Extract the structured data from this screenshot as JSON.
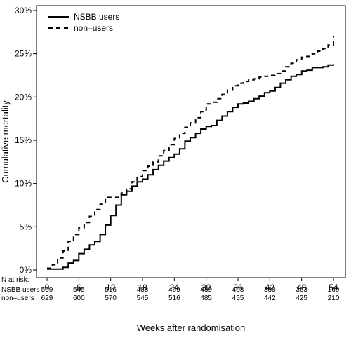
{
  "chart_data": {
    "type": "line",
    "step": true,
    "xlabel": "Weeks after randomisation",
    "ylabel": "Cumulative mortality",
    "xlim": [
      0,
      54
    ],
    "ylim": [
      0,
      30
    ],
    "x_ticks": [
      0,
      6,
      12,
      18,
      24,
      30,
      36,
      42,
      48,
      54
    ],
    "y_ticks": [
      "0%",
      "5%",
      "10%",
      "15%",
      "20%",
      "25%",
      "30%"
    ],
    "grid": false,
    "legend": "top-left",
    "series": [
      {
        "name": "NSBB users",
        "style": "solid",
        "color": "#000000",
        "x": [
          0,
          3,
          4,
          5,
          6,
          7,
          8,
          9,
          10,
          11,
          12,
          13,
          14,
          15,
          16,
          17,
          18,
          19,
          20,
          21,
          22,
          23,
          24,
          25,
          26,
          27,
          28,
          29,
          30,
          31,
          32,
          33,
          34,
          35,
          36,
          37,
          38,
          39,
          40,
          41,
          42,
          43,
          44,
          45,
          46,
          47,
          48,
          49,
          50,
          52,
          53,
          54
        ],
        "y": [
          0.1,
          0.3,
          0.8,
          1.1,
          1.9,
          2.4,
          2.9,
          3.3,
          4.1,
          5.2,
          6.3,
          7.5,
          8.7,
          9.1,
          9.7,
          10.2,
          10.5,
          11.0,
          11.6,
          12.1,
          12.6,
          13.0,
          13.4,
          14.0,
          14.9,
          15.3,
          15.8,
          16.3,
          16.6,
          16.7,
          17.3,
          17.8,
          18.3,
          18.8,
          19.2,
          19.3,
          19.5,
          19.8,
          20.1,
          20.5,
          20.7,
          21.1,
          21.6,
          22.0,
          22.4,
          22.6,
          23.0,
          23.1,
          23.4,
          23.5,
          23.7,
          23.8
        ]
      },
      {
        "name": "non–users",
        "style": "dashed",
        "color": "#000000",
        "x": [
          0,
          1,
          2,
          3,
          4,
          5,
          6,
          7,
          8,
          9,
          10,
          11,
          12,
          13,
          14,
          15,
          16,
          17,
          18,
          19,
          20,
          21,
          22,
          23,
          24,
          25,
          26,
          27,
          28,
          29,
          30,
          31,
          32,
          33,
          34,
          35,
          36,
          37,
          38,
          39,
          40,
          41,
          42,
          43,
          44,
          45,
          46,
          47,
          48,
          49,
          50,
          51,
          52,
          53,
          54
        ],
        "y": [
          0.2,
          0.6,
          1.4,
          2.2,
          3.3,
          4.1,
          4.9,
          5.5,
          6.2,
          7.0,
          7.6,
          8.4,
          8.4,
          8.4,
          8.9,
          9.4,
          10.2,
          10.8,
          11.5,
          12.0,
          12.5,
          13.2,
          13.8,
          14.5,
          15.2,
          15.8,
          16.5,
          17.0,
          17.6,
          18.3,
          19.2,
          19.4,
          19.8,
          20.3,
          20.8,
          21.3,
          21.6,
          21.8,
          22.0,
          22.1,
          22.3,
          22.4,
          22.5,
          22.7,
          23.0,
          23.5,
          23.9,
          24.3,
          24.6,
          24.7,
          25.0,
          25.3,
          25.6,
          26.0,
          27.0
        ]
      }
    ],
    "risk_table": {
      "header": "N at risk:",
      "rows": [
        {
          "label": "NSBB users",
          "values": [
            "559",
            "545",
            "516",
            "488",
            "469",
            "439",
            "408",
            "388",
            "363",
            "169"
          ]
        },
        {
          "label": "non–users",
          "values": [
            "629",
            "600",
            "570",
            "545",
            "516",
            "485",
            "455",
            "442",
            "425",
            "210"
          ]
        }
      ]
    }
  }
}
